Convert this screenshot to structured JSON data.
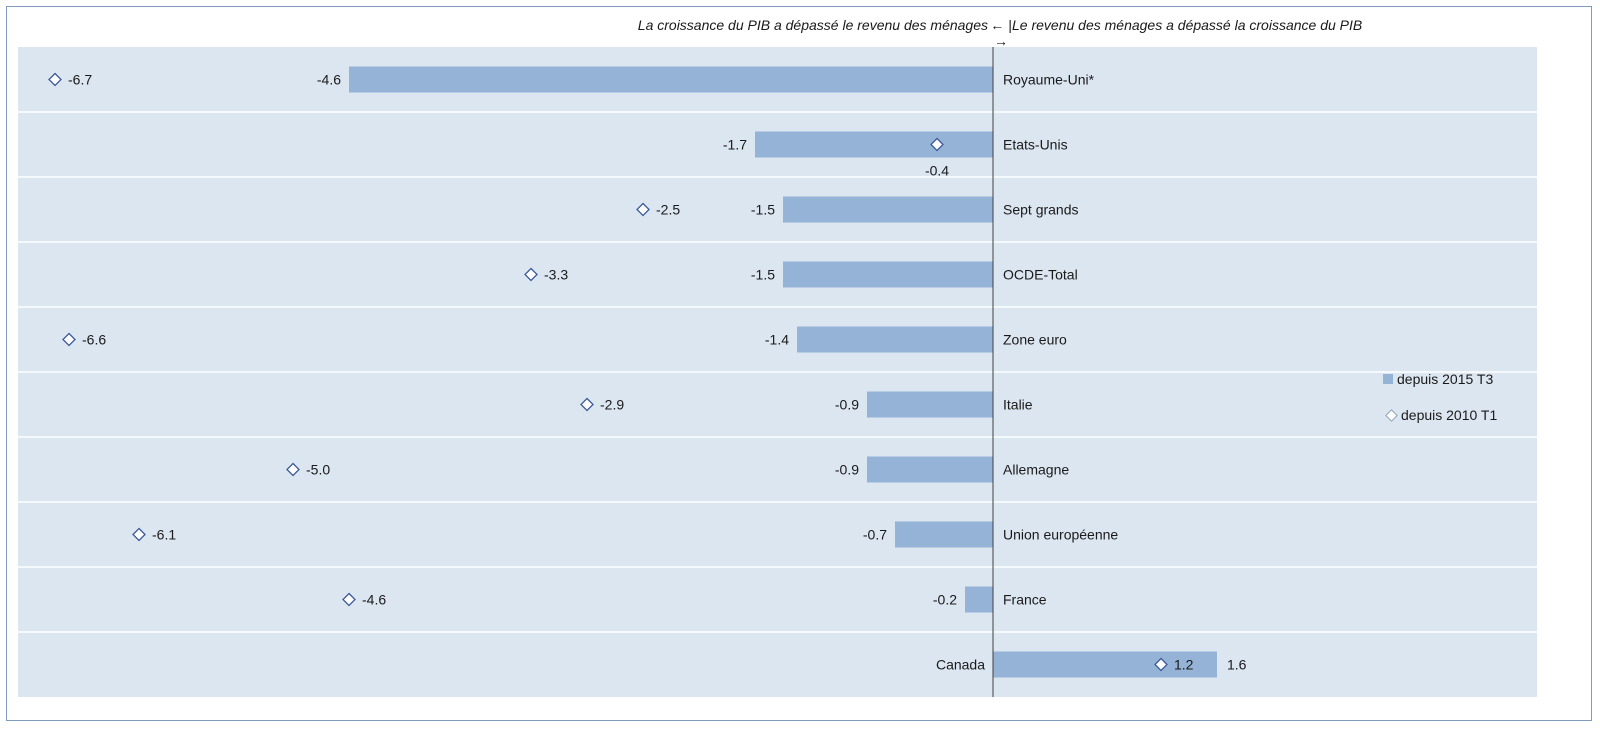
{
  "header": {
    "left_text": "La croissance du PIB a dépassé le revenu des ménages",
    "separator": "← | →",
    "right_text": "Le revenu des ménages a dépassé la croissance du PIB"
  },
  "legend": {
    "series_1": "depuis 2015 T3",
    "series_2": "depuis 2010 T1"
  },
  "colors": {
    "bar": "#95b3d7",
    "plot_background": "#dce6f1",
    "grid": "#ffffff",
    "diamond_stroke": "#3b5998",
    "axis": "#404040"
  },
  "chart_data": {
    "type": "bar",
    "orientation": "horizontal",
    "categories": [
      "Royaume-Uni*",
      "Etats-Unis",
      "Sept grands",
      "OCDE-Total",
      "Zone euro",
      "Italie",
      "Allemagne",
      "Union européenne",
      "France",
      "Canada"
    ],
    "series": [
      {
        "name": "depuis 2015 T3",
        "values": [
          -4.6,
          -1.7,
          -1.5,
          -1.5,
          -1.4,
          -0.9,
          -0.9,
          -0.7,
          -0.2,
          1.6
        ],
        "marker": "bar"
      },
      {
        "name": "depuis 2010 T1",
        "values": [
          -6.7,
          -0.4,
          -2.5,
          -3.3,
          -6.6,
          -2.9,
          -5.0,
          -6.1,
          -4.6,
          1.2
        ],
        "marker": "diamond"
      }
    ],
    "value_labels_1": [
      "-4.6",
      "-1.7",
      "-1.5",
      "-1.5",
      "-1.4",
      "-0.9",
      "-0.9",
      "-0.7",
      "-0.2",
      "1.6"
    ],
    "value_labels_2": [
      "-6.7",
      "-0.4",
      "-2.5",
      "-3.3",
      "-6.6",
      "-2.9",
      "-5.0",
      "-6.1",
      "-4.6",
      "1.2"
    ],
    "xlim": [
      -7.0,
      4.2
    ],
    "grid": true,
    "legend_position": "right"
  }
}
